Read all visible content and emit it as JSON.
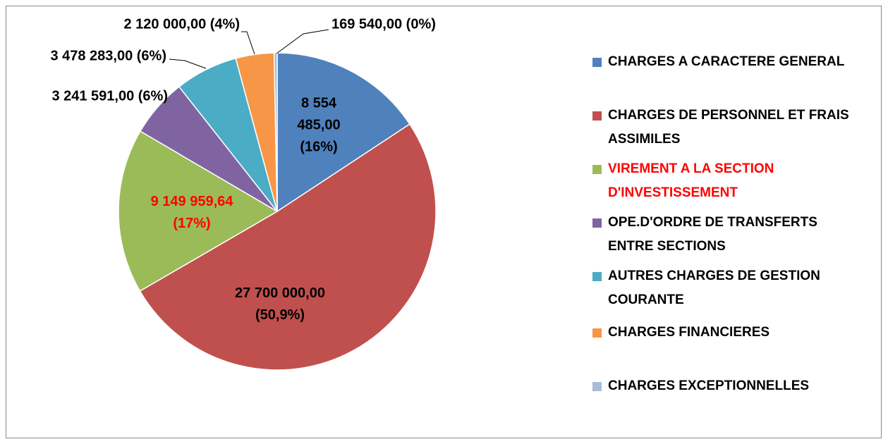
{
  "chart_data": {
    "type": "pie",
    "categories": [
      "CHARGES A CARACTERE GENERAL",
      "CHARGES DE PERSONNEL ET FRAIS ASSIMILES",
      "VIREMENT A LA SECTION D'INVESTISSEMENT",
      "OPE.D'ORDRE DE TRANSFERTS ENTRE SECTIONS",
      "AUTRES CHARGES DE GESTION COURANTE",
      "CHARGES FINANCIERES",
      "CHARGES EXCEPTIONNELLES"
    ],
    "values": [
      8554485,
      27700000,
      9149959.64,
      3241591,
      3478283,
      2120000,
      169540
    ],
    "value_labels": [
      "8 554 485,00 (16%)",
      "27 700 000,00 (50,9%)",
      "9 149 959,64 (17%)",
      "3 241 591,00 (6%)",
      "3 478 283,00 (6%)",
      "2 120 000,00 (4%)",
      "169 540,00 (0%)"
    ],
    "colors": [
      "#4f81bd",
      "#c0504d",
      "#9bbb59",
      "#8064a2",
      "#4bacc6",
      "#f79646",
      "#a6bddb"
    ],
    "text_colors": [
      "#000000",
      "#000000",
      "#ff0000",
      "#000000",
      "#000000",
      "#000000",
      "#000000"
    ],
    "legend": "right"
  }
}
